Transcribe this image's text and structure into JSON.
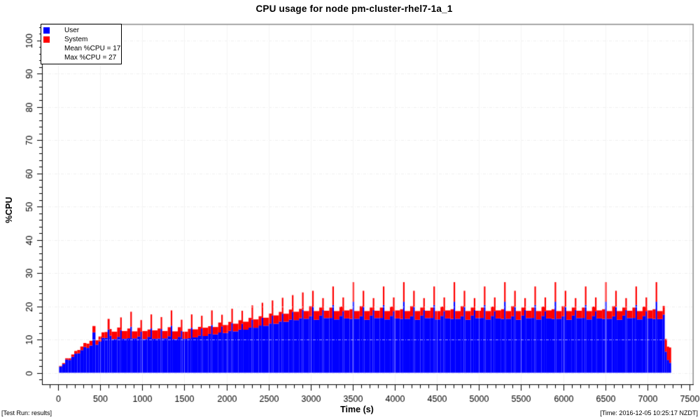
{
  "footer": {
    "left": "[Test Run: results]",
    "right": "[Time: 2016-12-05 10:25:17 NZDT]"
  },
  "chart_data": {
    "type": "area",
    "stacked": true,
    "title": "CPU usage for node pm-cluster-rhel7-1a_1",
    "xlabel": "Time (s)",
    "ylabel": "%CPU",
    "xlim": [
      0,
      7500
    ],
    "ylim": [
      0,
      100
    ],
    "x_ticks": [
      0,
      500,
      1000,
      1500,
      2000,
      2500,
      3000,
      3500,
      4000,
      4500,
      5000,
      5500,
      6000,
      6500,
      7000,
      7500
    ],
    "y_ticks": [
      0,
      10,
      20,
      30,
      40,
      50,
      60,
      70,
      80,
      90,
      100
    ],
    "x_minor_step": 100,
    "y_minor_step": 2,
    "grid": true,
    "legend": {
      "position": "top-left",
      "entries": [
        {
          "label": "User",
          "color": "#0000ff"
        },
        {
          "label": "System",
          "color": "#ff0000"
        }
      ],
      "stats": [
        "Mean %CPU = 17",
        "Max %CPU = 27"
      ]
    },
    "texture_jitter_pct": 0.35,
    "samples_format": [
      "time_s",
      "user_pct",
      "system_pct"
    ],
    "samples": [
      [
        48,
        2.2,
        0.2
      ],
      [
        84,
        2.6,
        0.3
      ],
      [
        120,
        3.6,
        0.4
      ],
      [
        156,
        4.2,
        0.5
      ],
      [
        192,
        4.8,
        0.7
      ],
      [
        228,
        5.4,
        0.8
      ],
      [
        264,
        6.2,
        1.0
      ],
      [
        300,
        6.8,
        1.1
      ],
      [
        336,
        7.4,
        1.2
      ],
      [
        372,
        7.8,
        1.3
      ],
      [
        408,
        8.2,
        1.4
      ],
      [
        444,
        11.8,
        1.9
      ],
      [
        480,
        8.8,
        1.3
      ],
      [
        516,
        9.4,
        1.5
      ],
      [
        552,
        10.2,
        1.6
      ],
      [
        588,
        10.8,
        1.8
      ],
      [
        612,
        13.0,
        3.2
      ],
      [
        636,
        10.8,
        2.0
      ],
      [
        702,
        10.5,
        2.2
      ],
      [
        738,
        10.8,
        2.8
      ],
      [
        756,
        12.5,
        3.8
      ],
      [
        822,
        10.6,
        2.3
      ],
      [
        858,
        10.4,
        2.9
      ],
      [
        876,
        13.5,
        4.5
      ],
      [
        942,
        10.7,
        2.1
      ],
      [
        978,
        10.9,
        2.6
      ],
      [
        996,
        12.0,
        3.5
      ],
      [
        1062,
        10.5,
        2.4
      ],
      [
        1098,
        10.8,
        2.2
      ],
      [
        1116,
        13.0,
        4.2
      ],
      [
        1182,
        10.6,
        2.5
      ],
      [
        1218,
        10.3,
        3.0
      ],
      [
        1236,
        12.8,
        3.6
      ],
      [
        1302,
        10.7,
        2.2
      ],
      [
        1338,
        11.0,
        2.7
      ],
      [
        1356,
        13.8,
        4.6
      ],
      [
        1422,
        10.5,
        2.3
      ],
      [
        1458,
        10.8,
        2.9
      ],
      [
        1476,
        12.2,
        3.4
      ],
      [
        1542,
        10.6,
        2.1
      ],
      [
        1578,
        10.4,
        2.8
      ],
      [
        1596,
        13.2,
        4.0
      ],
      [
        1662,
        11.0,
        2.4
      ],
      [
        1698,
        11.2,
        2.6
      ],
      [
        1716,
        13.0,
        3.8
      ],
      [
        1782,
        11.4,
        2.5
      ],
      [
        1818,
        11.7,
        2.3
      ],
      [
        1836,
        14.0,
        4.4
      ],
      [
        1902,
        11.9,
        2.2
      ],
      [
        1938,
        12.1,
        3.0
      ],
      [
        1956,
        13.6,
        3.5
      ],
      [
        2022,
        12.3,
        2.4
      ],
      [
        2058,
        12.6,
        2.7
      ],
      [
        2076,
        14.6,
        4.3
      ],
      [
        2142,
        12.8,
        2.3
      ],
      [
        2178,
        13.0,
        2.8
      ],
      [
        2196,
        14.4,
        3.9
      ],
      [
        2262,
        13.3,
        2.4
      ],
      [
        2298,
        13.6,
        2.9
      ],
      [
        2316,
        15.6,
        4.3
      ],
      [
        2382,
        13.9,
        2.5
      ],
      [
        2418,
        14.2,
        2.8
      ],
      [
        2436,
        16.2,
        4.5
      ],
      [
        2502,
        14.5,
        2.4
      ],
      [
        2538,
        14.8,
        3.0
      ],
      [
        2556,
        16.8,
        4.6
      ],
      [
        2622,
        15.1,
        2.5
      ],
      [
        2658,
        15.4,
        2.9
      ],
      [
        2676,
        17.4,
        4.8
      ],
      [
        2742,
        15.7,
        2.4
      ],
      [
        2778,
        16.0,
        3.0
      ],
      [
        2796,
        18.0,
        5.0
      ],
      [
        2862,
        16.2,
        2.5
      ],
      [
        2898,
        16.4,
        2.8
      ],
      [
        2916,
        18.6,
        5.2
      ],
      [
        2982,
        16.6,
        2.3
      ],
      [
        3018,
        17.0,
        3.0
      ],
      [
        3036,
        19.5,
        4.8
      ],
      [
        3102,
        16.3,
        2.6
      ],
      [
        3138,
        17.2,
        2.4
      ],
      [
        3156,
        18.5,
        3.6
      ],
      [
        3222,
        16.8,
        2.2
      ],
      [
        3258,
        16.5,
        3.1
      ],
      [
        3276,
        20.0,
        5.6
      ],
      [
        3342,
        16.4,
        2.5
      ],
      [
        3378,
        17.1,
        2.8
      ],
      [
        3396,
        18.2,
        4.1
      ],
      [
        3462,
        16.7,
        2.4
      ],
      [
        3498,
        16.2,
        2.9
      ],
      [
        3516,
        21.0,
        5.9
      ],
      [
        3582,
        16.6,
        2.3
      ],
      [
        3618,
        17.0,
        3.0
      ],
      [
        3636,
        19.5,
        4.8
      ],
      [
        3702,
        16.3,
        2.6
      ],
      [
        3738,
        17.2,
        2.4
      ],
      [
        3756,
        18.5,
        3.6
      ],
      [
        3822,
        16.8,
        2.2
      ],
      [
        3858,
        16.5,
        3.1
      ],
      [
        3876,
        20.0,
        5.6
      ],
      [
        3942,
        16.4,
        2.5
      ],
      [
        3978,
        17.1,
        2.8
      ],
      [
        3996,
        18.2,
        4.1
      ],
      [
        4062,
        16.7,
        2.4
      ],
      [
        4098,
        16.2,
        2.9
      ],
      [
        4116,
        21.0,
        5.9
      ],
      [
        4182,
        16.6,
        2.3
      ],
      [
        4218,
        17.0,
        3.0
      ],
      [
        4236,
        19.5,
        4.8
      ],
      [
        4302,
        16.3,
        2.6
      ],
      [
        4338,
        17.2,
        2.4
      ],
      [
        4356,
        18.5,
        3.6
      ],
      [
        4422,
        16.8,
        2.2
      ],
      [
        4458,
        16.5,
        3.1
      ],
      [
        4476,
        20.0,
        5.6
      ],
      [
        4542,
        16.4,
        2.5
      ],
      [
        4578,
        17.1,
        2.8
      ],
      [
        4596,
        18.2,
        4.1
      ],
      [
        4662,
        16.7,
        2.4
      ],
      [
        4698,
        16.2,
        2.9
      ],
      [
        4716,
        21.0,
        5.9
      ],
      [
        4782,
        16.6,
        2.3
      ],
      [
        4818,
        17.0,
        3.0
      ],
      [
        4836,
        19.5,
        4.8
      ],
      [
        4902,
        16.3,
        2.6
      ],
      [
        4938,
        17.2,
        2.4
      ],
      [
        4956,
        18.5,
        3.6
      ],
      [
        5022,
        16.8,
        2.2
      ],
      [
        5058,
        16.5,
        3.1
      ],
      [
        5076,
        20.0,
        5.6
      ],
      [
        5142,
        16.4,
        2.5
      ],
      [
        5178,
        17.1,
        2.8
      ],
      [
        5196,
        18.2,
        4.1
      ],
      [
        5262,
        16.7,
        2.4
      ],
      [
        5298,
        16.2,
        2.9
      ],
      [
        5316,
        21.0,
        5.9
      ],
      [
        5382,
        16.6,
        2.3
      ],
      [
        5418,
        17.0,
        3.0
      ],
      [
        5436,
        19.5,
        4.8
      ],
      [
        5502,
        16.3,
        2.6
      ],
      [
        5538,
        17.2,
        2.4
      ],
      [
        5556,
        18.5,
        3.6
      ],
      [
        5622,
        16.8,
        2.2
      ],
      [
        5658,
        16.5,
        3.1
      ],
      [
        5676,
        20.0,
        5.6
      ],
      [
        5742,
        16.4,
        2.5
      ],
      [
        5778,
        17.1,
        2.8
      ],
      [
        5796,
        18.2,
        4.1
      ],
      [
        5862,
        16.7,
        2.4
      ],
      [
        5898,
        16.2,
        2.9
      ],
      [
        5916,
        21.0,
        5.9
      ],
      [
        5982,
        16.6,
        2.3
      ],
      [
        6018,
        17.0,
        3.0
      ],
      [
        6036,
        19.5,
        4.8
      ],
      [
        6102,
        16.3,
        2.6
      ],
      [
        6138,
        17.2,
        2.4
      ],
      [
        6156,
        18.5,
        3.6
      ],
      [
        6222,
        16.8,
        2.2
      ],
      [
        6258,
        16.5,
        3.1
      ],
      [
        6276,
        20.0,
        5.6
      ],
      [
        6342,
        16.4,
        2.5
      ],
      [
        6378,
        17.1,
        2.8
      ],
      [
        6396,
        18.2,
        4.1
      ],
      [
        6462,
        16.7,
        2.4
      ],
      [
        6498,
        16.2,
        2.9
      ],
      [
        6516,
        21.0,
        5.9
      ],
      [
        6582,
        16.6,
        2.3
      ],
      [
        6618,
        17.0,
        3.0
      ],
      [
        6636,
        19.5,
        4.8
      ],
      [
        6702,
        16.3,
        2.6
      ],
      [
        6738,
        17.2,
        2.4
      ],
      [
        6756,
        18.5,
        3.6
      ],
      [
        6822,
        16.8,
        2.2
      ],
      [
        6858,
        16.5,
        3.1
      ],
      [
        6876,
        20.0,
        5.6
      ],
      [
        6942,
        16.4,
        2.5
      ],
      [
        6978,
        17.1,
        2.8
      ],
      [
        6996,
        18.2,
        4.1
      ],
      [
        7062,
        16.7,
        2.4
      ],
      [
        7098,
        16.2,
        2.9
      ],
      [
        7116,
        21.0,
        5.9
      ],
      [
        7182,
        16.5,
        2.4
      ],
      [
        7206,
        17.5,
        2.6
      ],
      [
        7232,
        6.0,
        3.8
      ],
      [
        7258,
        4.2,
        4.0
      ],
      [
        7282,
        3.0,
        4.6
      ]
    ]
  }
}
